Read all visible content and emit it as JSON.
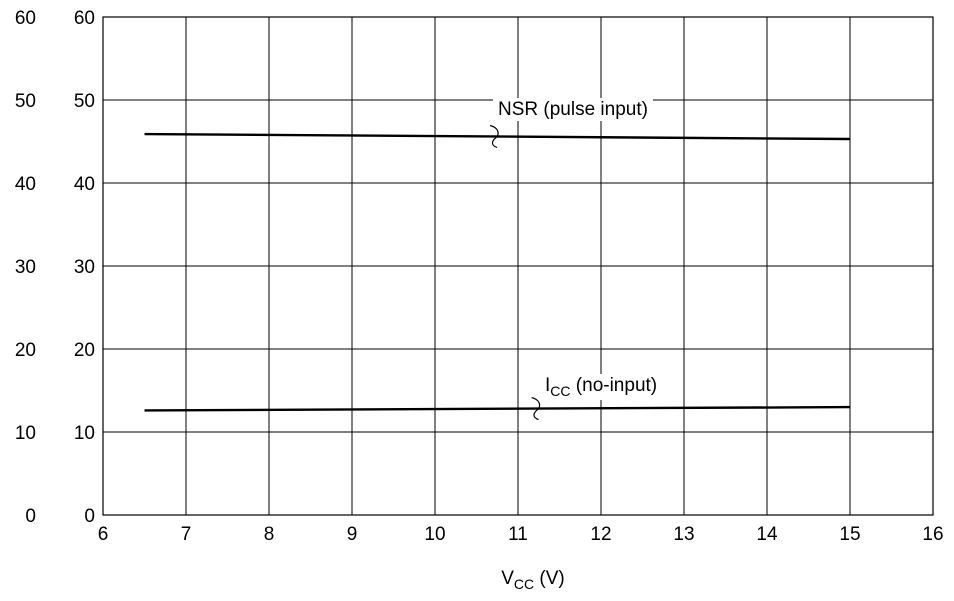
{
  "chart_data": {
    "type": "line",
    "xlabel": "V",
    "xlabel_sub": "CC",
    "xlabel_unit": " (V)",
    "xlim": [
      6,
      16
    ],
    "ylim": [
      0,
      60
    ],
    "ylim_outer": [
      0,
      60
    ],
    "x_ticks": [
      6,
      7,
      8,
      9,
      10,
      11,
      12,
      13,
      14,
      15,
      16
    ],
    "y_ticks": [
      0,
      10,
      20,
      30,
      40,
      50,
      60
    ],
    "y_ticks_outer": [
      0,
      10,
      20,
      30,
      40,
      50,
      60
    ],
    "grid": true,
    "series": [
      {
        "name": "NSR (pulse input)",
        "label_main": "NSR (pulse input)",
        "label_sub": "",
        "label_tail": "",
        "x": [
          6.5,
          15
        ],
        "y": [
          45.9,
          45.3
        ]
      },
      {
        "name": "ICC (no-input)",
        "label_main": "I",
        "label_sub": "CC",
        "label_tail": " (no-input)",
        "x": [
          6.5,
          15
        ],
        "y": [
          12.6,
          13.0
        ]
      }
    ]
  }
}
